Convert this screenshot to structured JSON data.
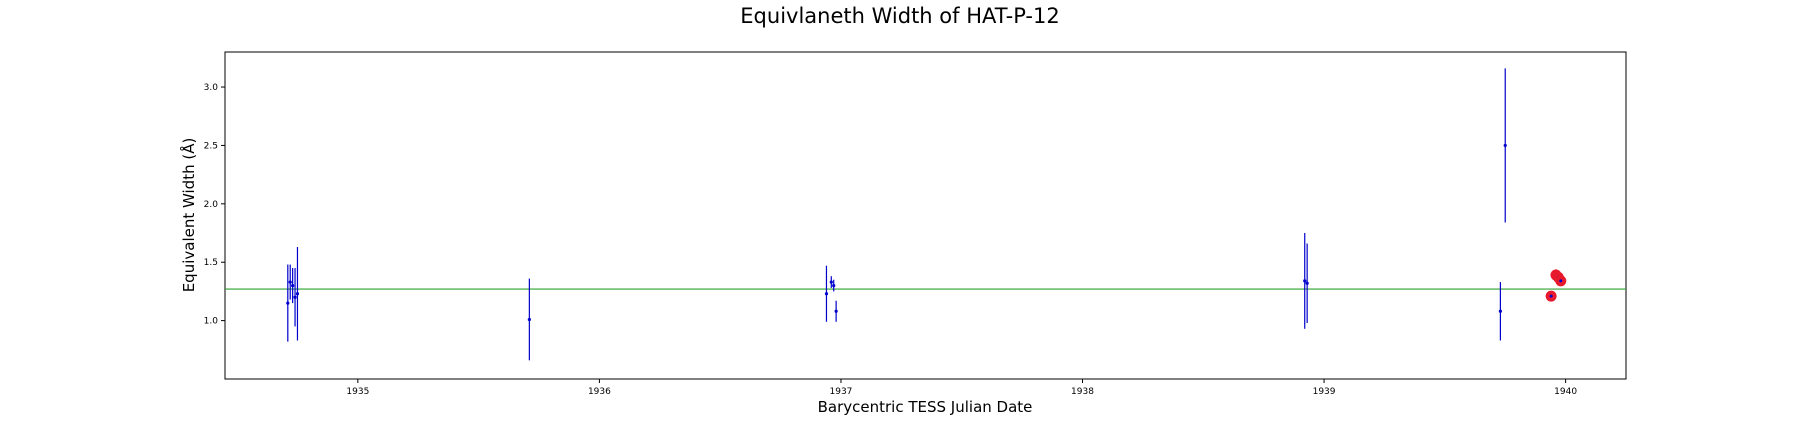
{
  "chart_data": {
    "type": "scatter",
    "title": "Equivlaneth Width of HAT-P-12",
    "xlabel": "Barycentric TESS Julian Date",
    "ylabel": "Equivalent Width (Å)",
    "xlim": [
      1934.45,
      1940.25
    ],
    "ylim": [
      0.5,
      3.3
    ],
    "xticks": [
      1935,
      1936,
      1937,
      1938,
      1939,
      1940
    ],
    "xtick_labels": [
      "1935",
      "1936",
      "1937",
      "1938",
      "1939",
      "1940"
    ],
    "yticks": [
      1.0,
      1.5,
      2.0,
      2.5,
      3.0
    ],
    "ytick_labels": [
      "1.0",
      "1.5",
      "2.0",
      "2.5",
      "3.0"
    ],
    "grid": false,
    "reference_line": {
      "y": 1.27,
      "color": "#2ca02c"
    },
    "series": [
      {
        "color": "#0000cc",
        "marker": "dot-errorbar",
        "points": [
          {
            "x": 1934.71,
            "y": 1.15,
            "err": 0.33
          },
          {
            "x": 1934.72,
            "y": 1.33,
            "err": 0.15
          },
          {
            "x": 1934.73,
            "y": 1.3,
            "err": 0.15
          },
          {
            "x": 1934.74,
            "y": 1.2,
            "err": 0.25
          },
          {
            "x": 1934.75,
            "y": 1.23,
            "err": 0.4
          },
          {
            "x": 1935.71,
            "y": 1.01,
            "err": 0.35
          },
          {
            "x": 1936.94,
            "y": 1.23,
            "err": 0.24
          },
          {
            "x": 1936.96,
            "y": 1.33,
            "err": 0.05
          },
          {
            "x": 1936.97,
            "y": 1.3,
            "err": 0.05
          },
          {
            "x": 1936.98,
            "y": 1.08,
            "err": 0.09
          },
          {
            "x": 1938.92,
            "y": 1.34,
            "err": 0.41
          },
          {
            "x": 1938.93,
            "y": 1.32,
            "err": 0.34
          },
          {
            "x": 1939.73,
            "y": 1.08,
            "err": 0.25
          },
          {
            "x": 1939.75,
            "y": 2.5,
            "err": 0.66
          }
        ]
      },
      {
        "color": "#e8192c",
        "marker": "large-dot",
        "points": [
          {
            "x": 1939.94,
            "y": 1.21,
            "err": 0.02
          },
          {
            "x": 1939.96,
            "y": 1.39,
            "err": 0.05
          },
          {
            "x": 1939.97,
            "y": 1.37,
            "err": 0.04
          },
          {
            "x": 1939.98,
            "y": 1.34,
            "err": 0.04
          }
        ]
      }
    ]
  }
}
